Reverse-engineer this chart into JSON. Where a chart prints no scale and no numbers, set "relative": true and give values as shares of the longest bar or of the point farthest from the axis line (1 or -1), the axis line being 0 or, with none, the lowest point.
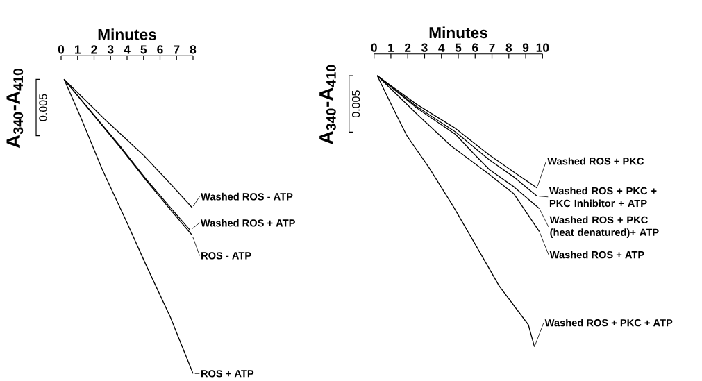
{
  "chart_data": [
    {
      "type": "line",
      "legend": "right",
      "xlabel": "Minutes",
      "ylabel": "A$_{340}$-A$_{410}$",
      "annotations": [
        "0.005"
      ],
      "relative": true,
      "xlim": [
        0,
        8
      ],
      "xticks": [
        0,
        1,
        2,
        3,
        4,
        5,
        6,
        7,
        8
      ],
      "series": [
        {
          "name": "Washed ROS - ATP",
          "color": "#000000",
          "x": [
            0.18,
            2.65,
            5.0,
            6.63,
            7.95
          ],
          "values": [
            1.0,
            0.864,
            0.742,
            0.645,
            0.564
          ]
        },
        {
          "name": "Washed ROS + ATP",
          "color": "#000000",
          "x": [
            0.18,
            3.68,
            5.15,
            6.63,
            7.83
          ],
          "values": [
            1.0,
            0.766,
            0.661,
            0.564,
            0.487
          ]
        },
        {
          "name": "ROS - ATP",
          "color": "#000000",
          "x": [
            0.18,
            3.68,
            5.15,
            6.63,
            7.95
          ],
          "values": [
            1.0,
            0.762,
            0.657,
            0.557,
            0.47
          ]
        },
        {
          "name": "ROS + ATP",
          "color": "#000000",
          "x": [
            0.18,
            1.18,
            2.5,
            3.98,
            5.15,
            6.63,
            8.0
          ],
          "values": [
            1.0,
            0.872,
            0.693,
            0.515,
            0.369,
            0.191,
            0.0
          ]
        }
      ]
    },
    {
      "type": "line",
      "legend": "right",
      "xlabel": "Minutes",
      "ylabel": "A$_{340}$-A$_{410}$",
      "annotations": [
        "0.005"
      ],
      "relative": true,
      "xlim": [
        0,
        10
      ],
      "xticks": [
        0,
        1,
        2,
        3,
        4,
        5,
        6,
        7,
        8,
        9,
        10
      ],
      "series": [
        {
          "name": "Washed ROS + PKC",
          "color": "#000000",
          "x": [
            0.19,
            2.53,
            4.84,
            6.85,
            8.3,
            9.67
          ],
          "values": [
            1.0,
            0.894,
            0.805,
            0.707,
            0.644,
            0.586
          ]
        },
        {
          "name": "Washed ROS + PKC + PKC Inhibitor + ATP",
          "color": "#000000",
          "x": [
            0.19,
            2.53,
            4.84,
            6.85,
            8.3,
            9.67
          ],
          "values": [
            1.0,
            0.886,
            0.792,
            0.689,
            0.626,
            0.556
          ]
        },
        {
          "name": "Washed ROS + PKC (heat denatured)+ ATP",
          "color": "#000000",
          "x": [
            0.19,
            2.53,
            4.84,
            6.0,
            6.85,
            8.3,
            9.81
          ],
          "values": [
            1.0,
            0.881,
            0.783,
            0.707,
            0.653,
            0.59,
            0.51
          ]
        },
        {
          "name": "Washed ROS + ATP",
          "color": "#000000",
          "x": [
            0.19,
            2.53,
            4.55,
            6.85,
            8.3,
            9.81
          ],
          "values": [
            1.0,
            0.859,
            0.742,
            0.635,
            0.564,
            0.425
          ]
        },
        {
          "name": "Washed ROS + PKC + ATP",
          "color": "#000000",
          "x": [
            0.19,
            1.08,
            1.95,
            3.25,
            4.69,
            5.7,
            7.43,
            9.16,
            9.52
          ],
          "values": [
            1.0,
            0.886,
            0.778,
            0.662,
            0.519,
            0.411,
            0.224,
            0.081,
            0.0
          ]
        }
      ]
    }
  ]
}
